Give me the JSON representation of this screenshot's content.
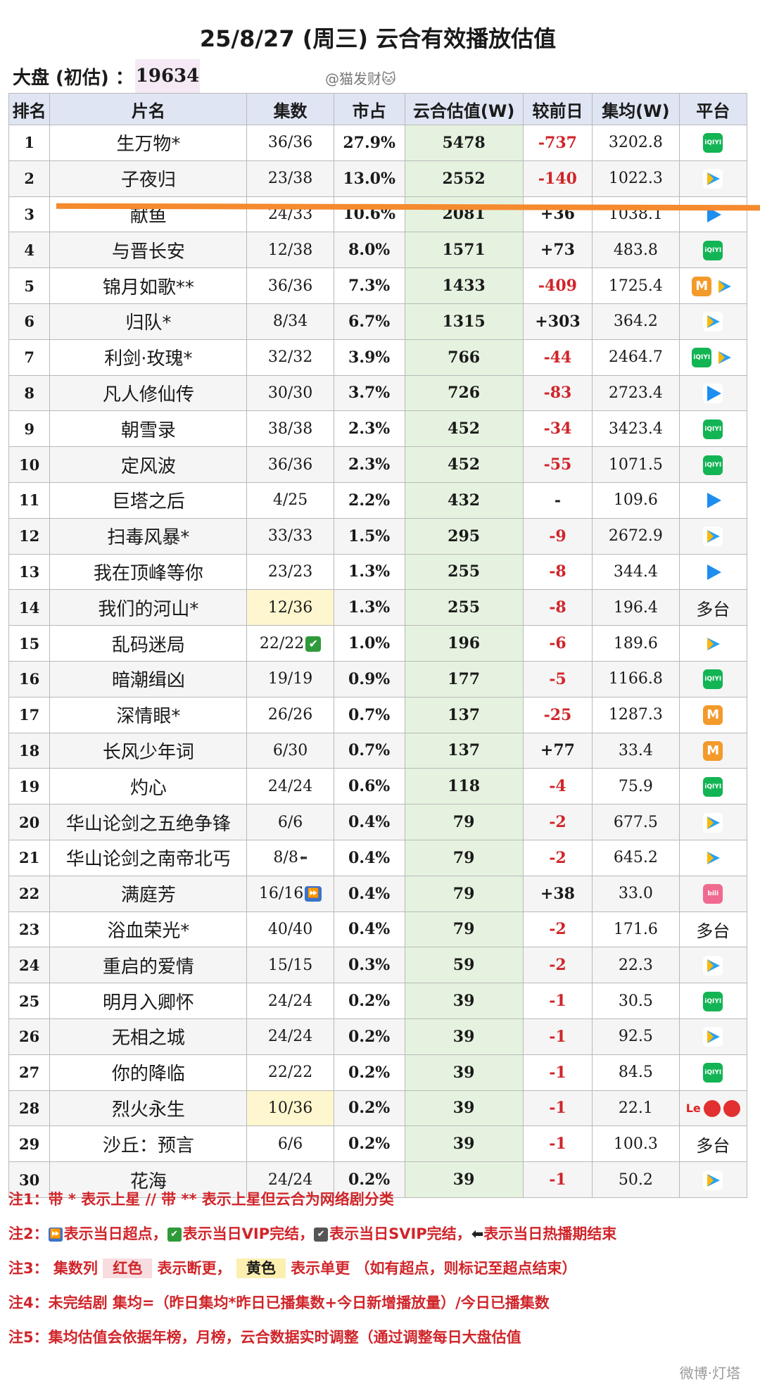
{
  "title": "25/8/27 (周三) 云合有效播放估值",
  "dapan": {
    "label": "大盘 (初估) ：",
    "value": "19634"
  },
  "watermark_top": "@猫发财🐱",
  "headers": [
    "排名",
    "片名",
    "集数",
    "市占",
    "云合估值(W)",
    "较前日",
    "集均(W)",
    "平台"
  ],
  "rows": [
    {
      "rank": "1",
      "name": "生万物*",
      "ep": "36/36",
      "share": "27.9%",
      "est": "5478",
      "chg": "-737",
      "avg": "3202.8",
      "plat": [
        "iqiyi"
      ]
    },
    {
      "rank": "2",
      "name": "子夜归",
      "ep": "23/38",
      "share": "13.0%",
      "est": "2552",
      "chg": "-140",
      "avg": "1022.3",
      "plat": [
        "tencent"
      ]
    },
    {
      "rank": "3",
      "name": "献鱼",
      "ep": "24/33",
      "share": "10.6%",
      "est": "2081",
      "chg": "+36",
      "avg": "1038.1",
      "plat": [
        "youku"
      ]
    },
    {
      "rank": "4",
      "name": "与晋长安",
      "ep": "12/38",
      "share": "8.0%",
      "est": "1571",
      "chg": "+73",
      "avg": "483.8",
      "plat": [
        "iqiyi"
      ]
    },
    {
      "rank": "5",
      "name": "锦月如歌**",
      "ep": "36/36",
      "share": "7.3%",
      "est": "1433",
      "chg": "-409",
      "avg": "1725.4",
      "plat": [
        "mango",
        "tencent"
      ]
    },
    {
      "rank": "6",
      "name": "归队*",
      "ep": "8/34",
      "share": "6.7%",
      "est": "1315",
      "chg": "+303",
      "avg": "364.2",
      "plat": [
        "tencent"
      ]
    },
    {
      "rank": "7",
      "name": "利剑·玫瑰*",
      "ep": "32/32",
      "share": "3.9%",
      "est": "766",
      "chg": "-44",
      "avg": "2464.7",
      "plat": [
        "iqiyi",
        "tencent"
      ]
    },
    {
      "rank": "8",
      "name": "凡人修仙传",
      "ep": "30/30",
      "share": "3.7%",
      "est": "726",
      "chg": "-83",
      "avg": "2723.4",
      "plat": [
        "youku"
      ]
    },
    {
      "rank": "9",
      "name": "朝雪录",
      "ep": "38/38",
      "share": "2.3%",
      "est": "452",
      "chg": "-34",
      "avg": "3423.4",
      "plat": [
        "iqiyi"
      ]
    },
    {
      "rank": "10",
      "name": "定风波",
      "ep": "36/36",
      "share": "2.3%",
      "est": "452",
      "chg": "-55",
      "avg": "1071.5",
      "plat": [
        "iqiyi"
      ]
    },
    {
      "rank": "11",
      "name": "巨塔之后",
      "ep": "4/25",
      "share": "2.2%",
      "est": "432",
      "chg": "-",
      "avg": "109.6",
      "plat": [
        "youku"
      ]
    },
    {
      "rank": "12",
      "name": "扫毒风暴*",
      "ep": "33/33",
      "share": "1.5%",
      "est": "295",
      "chg": "-9",
      "avg": "2672.9",
      "plat": [
        "tencent"
      ]
    },
    {
      "rank": "13",
      "name": "我在顶峰等你",
      "ep": "23/23",
      "share": "1.3%",
      "est": "255",
      "chg": "-8",
      "avg": "344.4",
      "plat": [
        "youku"
      ]
    },
    {
      "rank": "14",
      "name": "我们的河山*",
      "ep": "12/36",
      "share": "1.3%",
      "est": "255",
      "chg": "-8",
      "avg": "196.4",
      "plat": [],
      "plat_text": "多台",
      "ep_yellow": true
    },
    {
      "rank": "15",
      "name": "乱码迷局",
      "ep": "22/22",
      "ep_tag": "check",
      "share": "1.0%",
      "est": "196",
      "chg": "-6",
      "avg": "189.6",
      "plat": [
        "tencent"
      ]
    },
    {
      "rank": "16",
      "name": "暗潮缉凶",
      "ep": "19/19",
      "share": "0.9%",
      "est": "177",
      "chg": "-5",
      "avg": "1166.8",
      "plat": [
        "iqiyi"
      ]
    },
    {
      "rank": "17",
      "name": "深情眼*",
      "ep": "26/26",
      "share": "0.7%",
      "est": "137",
      "chg": "-25",
      "avg": "1287.3",
      "plat": [
        "mango"
      ]
    },
    {
      "rank": "18",
      "name": "长风少年词",
      "ep": "6/30",
      "share": "0.7%",
      "est": "137",
      "chg": "+77",
      "avg": "33.4",
      "plat": [
        "mango"
      ]
    },
    {
      "rank": "19",
      "name": "灼心",
      "ep": "24/24",
      "share": "0.6%",
      "est": "118",
      "chg": "-4",
      "avg": "75.9",
      "plat": [
        "iqiyi"
      ]
    },
    {
      "rank": "20",
      "name": "华山论剑之五绝争锋",
      "ep": "6/6",
      "share": "0.4%",
      "est": "79",
      "chg": "-2",
      "avg": "677.5",
      "plat": [
        "tencent"
      ]
    },
    {
      "rank": "21",
      "name": "华山论剑之南帝北丐",
      "ep": "8/8",
      "ep_tag": "end",
      "share": "0.4%",
      "est": "79",
      "chg": "-2",
      "avg": "645.2",
      "plat": [
        "tencent"
      ]
    },
    {
      "rank": "22",
      "name": "满庭芳",
      "ep": "16/16",
      "ep_tag": "ff",
      "share": "0.4%",
      "est": "79",
      "chg": "+38",
      "avg": "33.0",
      "plat": [
        "bili"
      ]
    },
    {
      "rank": "23",
      "name": "浴血荣光*",
      "ep": "40/40",
      "share": "0.4%",
      "est": "79",
      "chg": "-2",
      "avg": "171.6",
      "plat": [],
      "plat_text": "多台"
    },
    {
      "rank": "24",
      "name": "重启的爱情",
      "ep": "15/15",
      "share": "0.3%",
      "est": "59",
      "chg": "-2",
      "avg": "22.3",
      "plat": [
        "tencent"
      ]
    },
    {
      "rank": "25",
      "name": "明月入卿怀",
      "ep": "24/24",
      "share": "0.2%",
      "est": "39",
      "chg": "-1",
      "avg": "30.5",
      "plat": [
        "iqiyi"
      ]
    },
    {
      "rank": "26",
      "name": "无相之城",
      "ep": "24/24",
      "share": "0.2%",
      "est": "39",
      "chg": "-1",
      "avg": "92.5",
      "plat": [
        "tencent"
      ]
    },
    {
      "rank": "27",
      "name": "你的降临",
      "ep": "22/22",
      "share": "0.2%",
      "est": "39",
      "chg": "-1",
      "avg": "84.5",
      "plat": [
        "iqiyi"
      ]
    },
    {
      "rank": "28",
      "name": "烈火永生",
      "ep": "10/36",
      "share": "0.2%",
      "est": "39",
      "chg": "-1",
      "avg": "22.1",
      "plat": [
        "le",
        "red",
        "red"
      ],
      "ep_yellow": true
    },
    {
      "rank": "29",
      "name": "沙丘：预言",
      "ep": "6/6",
      "share": "0.2%",
      "est": "39",
      "chg": "-1",
      "avg": "100.3",
      "plat": [],
      "plat_text": "多台"
    },
    {
      "rank": "30",
      "name": "花海",
      "ep": "24/24",
      "share": "0.2%",
      "est": "39",
      "chg": "-1",
      "avg": "50.2",
      "plat": [
        "tencent"
      ]
    }
  ],
  "notes": {
    "n1": "注1：带 * 表示上星 // 带 ** 表示上星但云合为网络剧分类",
    "n2_prefix": "注2：",
    "n2_a": "表示当日超点，",
    "n2_b": "表示当日VIP完结，",
    "n2_c": "表示当日SVIP完结，",
    "n2_d": "表示当日热播期结束",
    "n3_prefix": "注3：  集数列  ",
    "n3_red": "红色",
    "n3_mid": "  表示断更，  ",
    "n3_yellow": "黄色",
    "n3_end": "  表示单更 （如有超点，则标记至超点结束）",
    "n4": "注4：未完结剧 集均=（昨日集均*昨日已播集数+今日新增播放量）/今日已播集数",
    "n5": "注5：集均估值会依据年榜，月榜，云合数据实时调整（通过调整每日大盘估值"
  },
  "watermark_bottom": "微博·灯塔",
  "platform_glyphs": {
    "iqiyi": "iQIYI",
    "le": "Le"
  },
  "colors": {
    "negative": "#d0252a",
    "header_bg": "#dfe5f2",
    "est_bg": "#e6f2e0",
    "strike": "#f58a2e"
  }
}
